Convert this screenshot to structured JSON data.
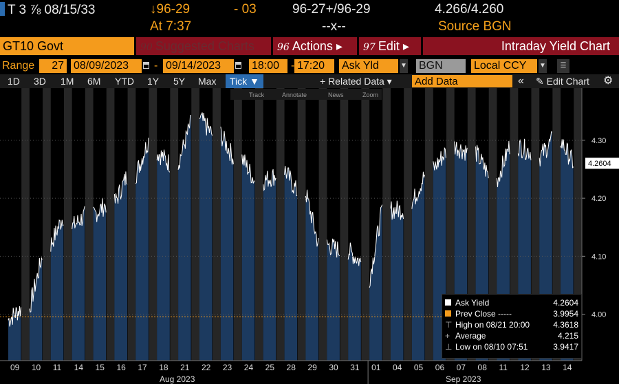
{
  "quote": {
    "security": "T 3 ⅞ 08/15/33",
    "price": "↓96-29",
    "change": "- 03",
    "bid_ask": "96-27+/96-29",
    "yields": "4.266/4.260",
    "time": "At 7:37",
    "size": "--x--",
    "source": "Source BGN"
  },
  "titlebar": {
    "ticker": "GT10 Govt",
    "suggested": {
      "num": "90",
      "label": "Suggested Charts"
    },
    "actions": {
      "num": "96",
      "label": "Actions ▸"
    },
    "edit": {
      "num": "97",
      "label": "Edit ▸"
    },
    "title": "Intraday Yield Chart"
  },
  "range": {
    "label": "Range",
    "days": "27",
    "start_date": "08/09/2023",
    "sep": "-",
    "end_date": "09/14/2023",
    "start_time": "18:00",
    "sep2": "-",
    "end_time": "17:20",
    "field": "Ask Yld",
    "source": "BGN",
    "currency": "Local CCY"
  },
  "toolbar": {
    "periods": [
      "1D",
      "3D",
      "1M",
      "6M",
      "YTD",
      "1Y",
      "5Y",
      "Max"
    ],
    "selected": "Tick ▼",
    "related": "+ Related Data ▾",
    "add_data_placeholder": "Add Data",
    "collapse": "«",
    "edit_chart": "✎ Edit Chart",
    "settings_icon": "gear-icon"
  },
  "subtools": [
    "Track",
    "Annotate",
    "News",
    "Zoom"
  ],
  "chart_data": {
    "type": "area",
    "series": [
      {
        "name": "Ask Yield"
      }
    ],
    "ylim": [
      3.92,
      4.39
    ],
    "yticks": [
      "4.00",
      "4.10",
      "4.20",
      "4.30"
    ],
    "last_value": "4.2604",
    "prev_close": 3.9954,
    "x_days": [
      "09",
      "10",
      "11",
      "14",
      "15",
      "16",
      "17",
      "18",
      "21",
      "22",
      "23",
      "24",
      "25",
      "28",
      "29",
      "30",
      "31",
      "01",
      "04",
      "05",
      "06",
      "07",
      "08",
      "11",
      "12",
      "13",
      "14"
    ],
    "months": [
      "Aug 2023",
      "Sep 2023"
    ],
    "day_close": [
      4.01,
      4.1,
      4.17,
      4.17,
      4.19,
      4.24,
      4.3,
      4.26,
      4.33,
      4.31,
      4.27,
      4.23,
      4.24,
      4.21,
      4.12,
      4.11,
      4.09,
      4.18,
      4.18,
      4.24,
      4.28,
      4.28,
      4.24,
      4.29,
      4.28,
      4.3,
      4.26
    ],
    "day_open": [
      3.99,
      4.01,
      4.12,
      4.15,
      4.17,
      4.19,
      4.24,
      4.28,
      4.26,
      4.34,
      4.31,
      4.27,
      4.23,
      4.25,
      4.21,
      4.12,
      4.11,
      4.06,
      4.18,
      4.19,
      4.25,
      4.29,
      4.28,
      4.23,
      4.29,
      4.27,
      4.3
    ],
    "colors": {
      "fill": "#1c3a5f",
      "line": "#ffffff",
      "prev_close": "#f49b1c",
      "band": "#262626"
    }
  },
  "legend": {
    "ask_yield": {
      "label": "Ask Yield",
      "value": "4.2604"
    },
    "prev_close": {
      "label": "Prev Close -----",
      "value": "3.9954"
    },
    "high": {
      "label": "High on 08/21 20:00",
      "value": "4.3618"
    },
    "average": {
      "label": "Average",
      "value": "4.215"
    },
    "low": {
      "label": "Low on 08/10 07:51",
      "value": "3.9417"
    }
  }
}
